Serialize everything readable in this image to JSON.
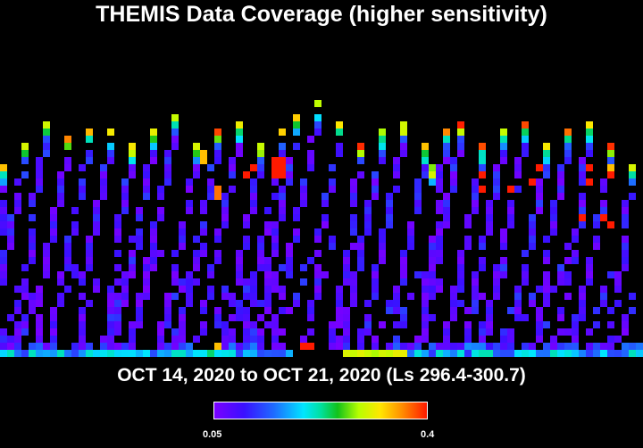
{
  "chart_data": {
    "type": "heatmap",
    "title": "THEMIS Data Coverage (higher sensitivity)",
    "subtitle": "OCT 14, 2020 to OCT 21, 2020 (Ls 296.4-300.7)",
    "colorbar": {
      "min_label": "0.05",
      "max_label": "0.4",
      "min": 0.05,
      "max": 0.4,
      "colors": [
        "#7a00ff",
        "#3a10ff",
        "#1e6bff",
        "#00e5ff",
        "#00e0a0",
        "#12c21a",
        "#b8ff00",
        "#ffe600",
        "#ff9000",
        "#ff1a00"
      ]
    },
    "grid": {
      "columns": 90,
      "rows": 51
    },
    "tracks": [
      {
        "col": 0,
        "top": 23,
        "pattern": 0
      },
      {
        "col": 3,
        "top": 20,
        "pattern": 1
      },
      {
        "col": 6,
        "top": 17,
        "pattern": 2
      },
      {
        "col": 9,
        "top": 19,
        "pattern": 0
      },
      {
        "col": 12,
        "top": 18,
        "pattern": 1
      },
      {
        "col": 15,
        "top": 18,
        "pattern": 2
      },
      {
        "col": 18,
        "top": 20,
        "pattern": 0
      },
      {
        "col": 21,
        "top": 18,
        "pattern": 1
      },
      {
        "col": 24,
        "top": 16,
        "pattern": 2
      },
      {
        "col": 27,
        "top": 20,
        "pattern": 0
      },
      {
        "col": 30,
        "top": 18,
        "pattern": 1
      },
      {
        "col": 33,
        "top": 17,
        "pattern": 2
      },
      {
        "col": 36,
        "top": 20,
        "pattern": 0
      },
      {
        "col": 39,
        "top": 18,
        "pattern": 1
      },
      {
        "col": 41,
        "top": 16,
        "pattern": 2
      },
      {
        "col": 44,
        "top": 14,
        "pattern": 0
      },
      {
        "col": 47,
        "top": 17,
        "pattern": 1
      },
      {
        "col": 50,
        "top": 20,
        "pattern": 2
      },
      {
        "col": 53,
        "top": 18,
        "pattern": 0
      },
      {
        "col": 56,
        "top": 17,
        "pattern": 1
      },
      {
        "col": 59,
        "top": 20,
        "pattern": 2
      },
      {
        "col": 62,
        "top": 18,
        "pattern": 0
      },
      {
        "col": 64,
        "top": 17,
        "pattern": 1
      },
      {
        "col": 67,
        "top": 20,
        "pattern": 2
      },
      {
        "col": 70,
        "top": 18,
        "pattern": 0
      },
      {
        "col": 73,
        "top": 17,
        "pattern": 1
      },
      {
        "col": 76,
        "top": 20,
        "pattern": 2
      },
      {
        "col": 79,
        "top": 18,
        "pattern": 0
      },
      {
        "col": 82,
        "top": 17,
        "pattern": 1
      },
      {
        "col": 85,
        "top": 20,
        "pattern": 2
      },
      {
        "col": 88,
        "top": 23,
        "pattern": 0
      }
    ],
    "bottom_band_row": 49,
    "isolated_cells": [
      {
        "c": 28,
        "r": 21,
        "v": 0.34
      },
      {
        "c": 28,
        "r": 22,
        "v": 0.34
      },
      {
        "c": 30,
        "r": 26,
        "v": 0.37
      },
      {
        "c": 30,
        "r": 27,
        "v": 0.37
      },
      {
        "c": 34,
        "r": 24,
        "v": 0.4
      },
      {
        "c": 35,
        "r": 23,
        "v": 0.4
      },
      {
        "c": 38,
        "r": 22,
        "v": 0.4
      },
      {
        "c": 38,
        "r": 23,
        "v": 0.4
      },
      {
        "c": 38,
        "r": 24,
        "v": 0.4
      },
      {
        "c": 39,
        "r": 22,
        "v": 0.4
      },
      {
        "c": 39,
        "r": 23,
        "v": 0.4
      },
      {
        "c": 39,
        "r": 24,
        "v": 0.4
      },
      {
        "c": 60,
        "r": 23,
        "v": 0.27
      },
      {
        "c": 60,
        "r": 24,
        "v": 0.3
      },
      {
        "c": 60,
        "r": 25,
        "v": 0.15
      },
      {
        "c": 67,
        "r": 24,
        "v": 0.4
      },
      {
        "c": 67,
        "r": 26,
        "v": 0.4
      },
      {
        "c": 71,
        "r": 26,
        "v": 0.4
      },
      {
        "c": 74,
        "r": 25,
        "v": 0.4
      },
      {
        "c": 75,
        "r": 23,
        "v": 0.4
      },
      {
        "c": 82,
        "r": 23,
        "v": 0.4
      },
      {
        "c": 82,
        "r": 25,
        "v": 0.4
      },
      {
        "c": 85,
        "r": 23,
        "v": 0.34
      },
      {
        "c": 85,
        "r": 24,
        "v": 0.4
      },
      {
        "c": 84,
        "r": 30,
        "v": 0.4
      },
      {
        "c": 85,
        "r": 31,
        "v": 0.4
      },
      {
        "c": 81,
        "r": 30,
        "v": 0.4
      },
      {
        "c": 42,
        "r": 48,
        "v": 0.4
      },
      {
        "c": 43,
        "r": 48,
        "v": 0.4
      },
      {
        "c": 40,
        "r": 49,
        "v": 0.15
      },
      {
        "c": 30,
        "r": 48,
        "v": 0.34
      },
      {
        "c": 29,
        "r": 49,
        "v": 0.22
      }
    ]
  }
}
